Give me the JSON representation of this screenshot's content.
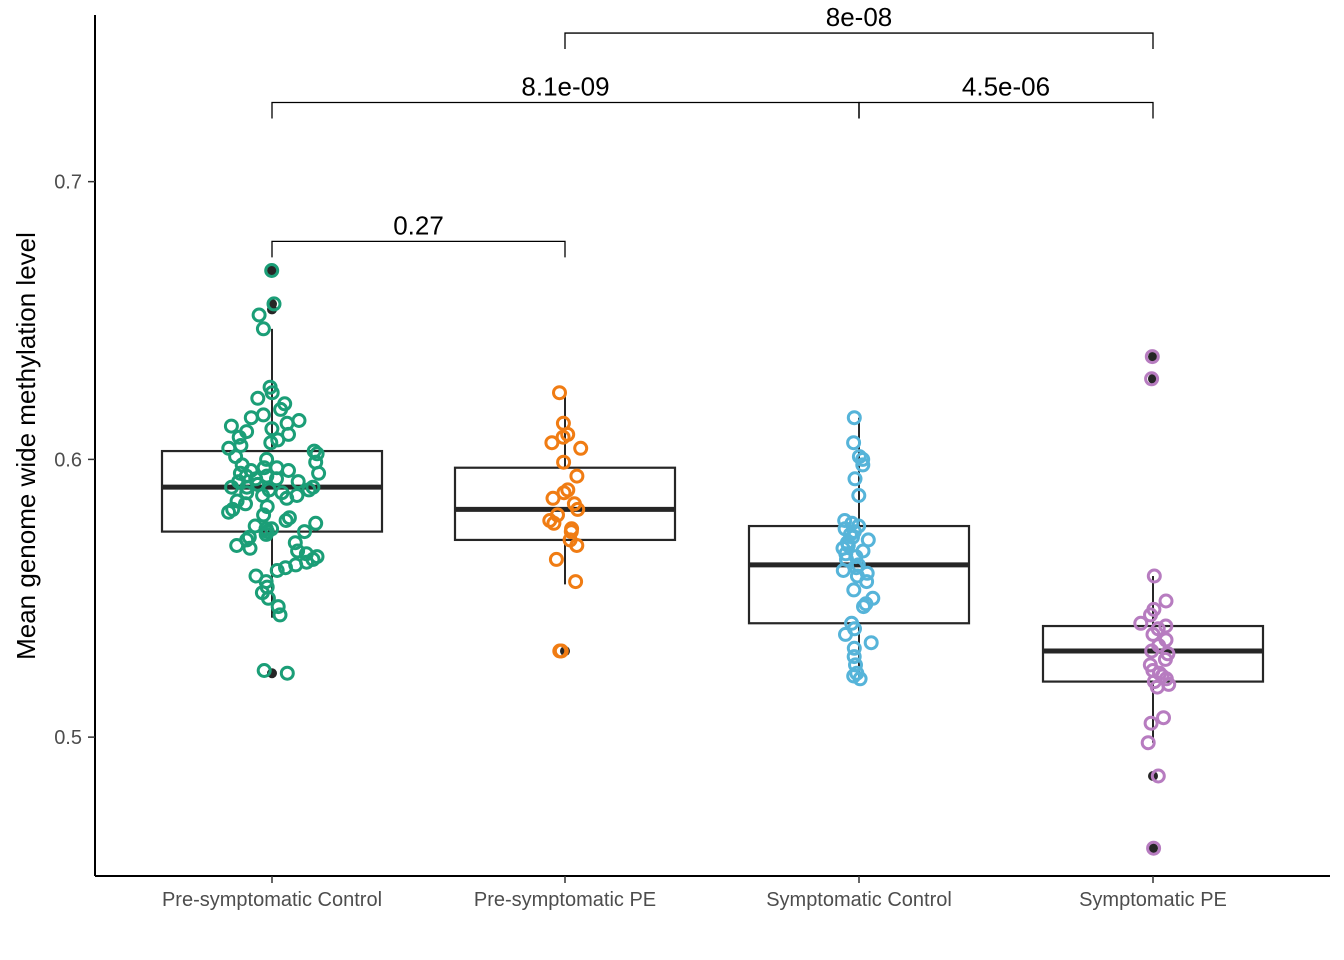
{
  "chart_data": {
    "type": "box",
    "title": "",
    "xlabel": "",
    "ylabel": "Mean genome wide methylation level",
    "ylim": [
      0.45,
      0.76
    ],
    "yticks": [
      0.5,
      0.6,
      0.7
    ],
    "ytick_labels": [
      "0.5",
      "0.6",
      "0.7"
    ],
    "grid": false,
    "legend": "none",
    "categories": [
      "Pre-symptomatic Control",
      "Pre-symptomatic PE",
      "Symptomatic Control",
      "Symptomatic PE"
    ],
    "colors": [
      "#1b9e77",
      "#f07c13",
      "#56b4d9",
      "#b77cc0"
    ],
    "box_color": "#262626",
    "boxes": [
      {
        "q1": 0.574,
        "median": 0.59,
        "q3": 0.603,
        "whisker_low": 0.543,
        "whisker_high": 0.647
      },
      {
        "q1": 0.571,
        "median": 0.582,
        "q3": 0.597,
        "whisker_low": 0.555,
        "whisker_high": 0.624
      },
      {
        "q1": 0.541,
        "median": 0.562,
        "q3": 0.576,
        "whisker_low": 0.521,
        "whisker_high": 0.615
      },
      {
        "q1": 0.52,
        "median": 0.531,
        "q3": 0.54,
        "whisker_low": 0.498,
        "whisker_high": 0.558
      }
    ],
    "outliers": [
      [
        0.668,
        0.656,
        0.654,
        0.523
      ],
      [
        0.531
      ],
      [],
      [
        0.637,
        0.629,
        0.486,
        0.46
      ]
    ],
    "points": [
      [
        0.668,
        0.656,
        0.652,
        0.647,
        0.626,
        0.624,
        0.622,
        0.62,
        0.618,
        0.616,
        0.615,
        0.614,
        0.613,
        0.612,
        0.611,
        0.61,
        0.609,
        0.608,
        0.607,
        0.606,
        0.605,
        0.604,
        0.603,
        0.602,
        0.601,
        0.6,
        0.599,
        0.598,
        0.597,
        0.597,
        0.596,
        0.596,
        0.595,
        0.595,
        0.594,
        0.594,
        0.593,
        0.593,
        0.592,
        0.592,
        0.591,
        0.591,
        0.59,
        0.59,
        0.59,
        0.589,
        0.589,
        0.588,
        0.588,
        0.587,
        0.587,
        0.586,
        0.585,
        0.584,
        0.583,
        0.582,
        0.581,
        0.58,
        0.579,
        0.578,
        0.577,
        0.576,
        0.575,
        0.575,
        0.575,
        0.574,
        0.574,
        0.573,
        0.572,
        0.571,
        0.57,
        0.569,
        0.568,
        0.567,
        0.566,
        0.565,
        0.564,
        0.563,
        0.562,
        0.561,
        0.56,
        0.558,
        0.556,
        0.554,
        0.552,
        0.55,
        0.547,
        0.544,
        0.524,
        0.523
      ],
      [
        0.624,
        0.613,
        0.609,
        0.608,
        0.606,
        0.604,
        0.599,
        0.594,
        0.589,
        0.588,
        0.586,
        0.584,
        0.582,
        0.58,
        0.578,
        0.577,
        0.575,
        0.574,
        0.571,
        0.569,
        0.564,
        0.556,
        0.531,
        0.531
      ],
      [
        0.615,
        0.606,
        0.601,
        0.6,
        0.598,
        0.593,
        0.587,
        0.578,
        0.577,
        0.576,
        0.575,
        0.574,
        0.573,
        0.572,
        0.571,
        0.57,
        0.569,
        0.568,
        0.567,
        0.566,
        0.565,
        0.564,
        0.562,
        0.561,
        0.56,
        0.559,
        0.558,
        0.556,
        0.553,
        0.55,
        0.548,
        0.547,
        0.541,
        0.539,
        0.537,
        0.534,
        0.532,
        0.529,
        0.526,
        0.523,
        0.522,
        0.521
      ],
      [
        0.637,
        0.629,
        0.558,
        0.549,
        0.546,
        0.544,
        0.541,
        0.54,
        0.539,
        0.537,
        0.535,
        0.533,
        0.531,
        0.53,
        0.528,
        0.526,
        0.524,
        0.523,
        0.522,
        0.521,
        0.52,
        0.519,
        0.518,
        0.507,
        0.505,
        0.498,
        0.486,
        0.46
      ]
    ],
    "comparisons": [
      {
        "from": 0,
        "to": 1,
        "label": "0.27",
        "y": 0.6785
      },
      {
        "from": 2,
        "to": 3,
        "label": "4.5e-06",
        "y": 0.7285
      },
      {
        "from": 0,
        "to": 2,
        "label": "8.1e-09",
        "y": 0.7285
      },
      {
        "from": 1,
        "to": 3,
        "label": "8e-08",
        "y": 0.7535
      }
    ]
  }
}
